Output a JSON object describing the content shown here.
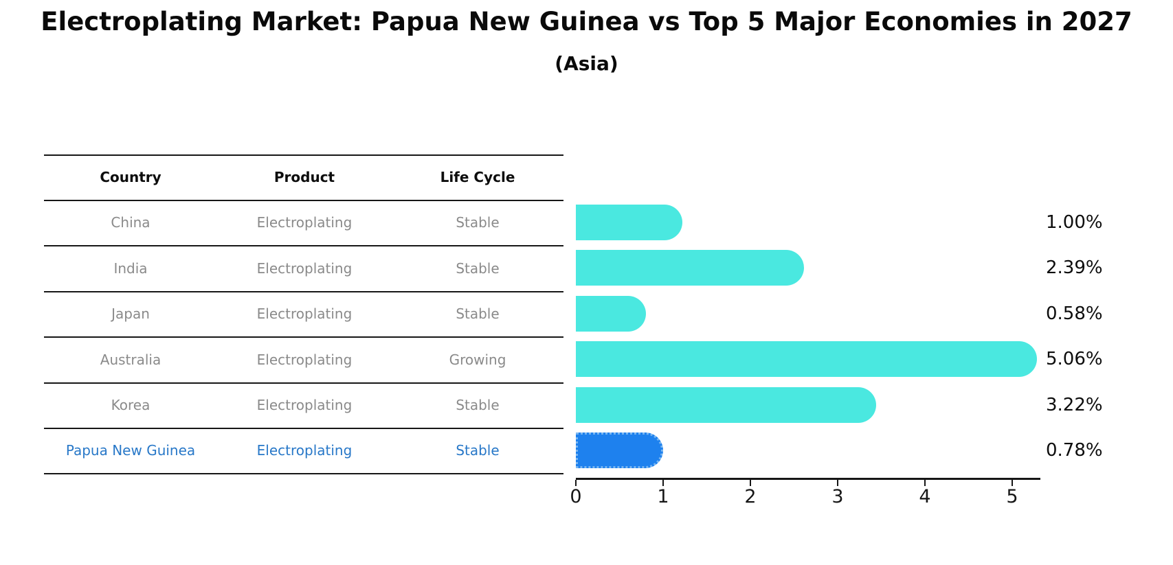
{
  "title": "Electroplating Market: Papua New Guinea vs Top 5 Major Economies in 2027",
  "subtitle": "(Asia)",
  "table": {
    "headers": [
      "Country",
      "Product",
      "Life Cycle"
    ],
    "rows": [
      {
        "country": "China",
        "product": "Electroplating",
        "life_cycle": "Stable",
        "highlighted": false
      },
      {
        "country": "India",
        "product": "Electroplating",
        "life_cycle": "Stable",
        "highlighted": false
      },
      {
        "country": "Japan",
        "product": "Electroplating",
        "life_cycle": "Stable",
        "highlighted": false
      },
      {
        "country": "Australia",
        "product": "Electroplating",
        "life_cycle": "Growing",
        "highlighted": false
      },
      {
        "country": "Korea",
        "product": "Electroplating",
        "life_cycle": "Stable",
        "highlighted": false
      },
      {
        "country": "Papua New Guinea",
        "product": "Electroplating",
        "life_cycle": "Stable",
        "highlighted": true
      }
    ]
  },
  "chart_data": {
    "type": "bar",
    "orientation": "horizontal",
    "title": "Electroplating Market: Papua New Guinea vs Top 5 Major Economies in 2027",
    "subtitle": "(Asia)",
    "categories": [
      "China",
      "India",
      "Japan",
      "Australia",
      "Korea",
      "Papua New Guinea"
    ],
    "values": [
      1.0,
      2.39,
      0.58,
      5.06,
      3.22,
      0.78
    ],
    "value_labels": [
      "1.00%",
      "2.39%",
      "0.58%",
      "5.06%",
      "3.22%",
      "0.78%"
    ],
    "xlabel": "",
    "ylabel": "",
    "xlim": [
      0,
      5.3
    ],
    "x_tick_labels": [
      "0",
      "1",
      "2",
      "3",
      "4",
      "5"
    ],
    "grid": false,
    "legend": false,
    "highlight_index": 5
  },
  "colors": {
    "bar_cyan": "#4AE8E0",
    "bar_highlight_blue": "#1E81EE",
    "bar_highlight_dot_border": "#79B7F2",
    "highlight_text_blue": "#2878C8",
    "row_text_gray": "#8a8a8a",
    "axis_black": "#161616"
  }
}
